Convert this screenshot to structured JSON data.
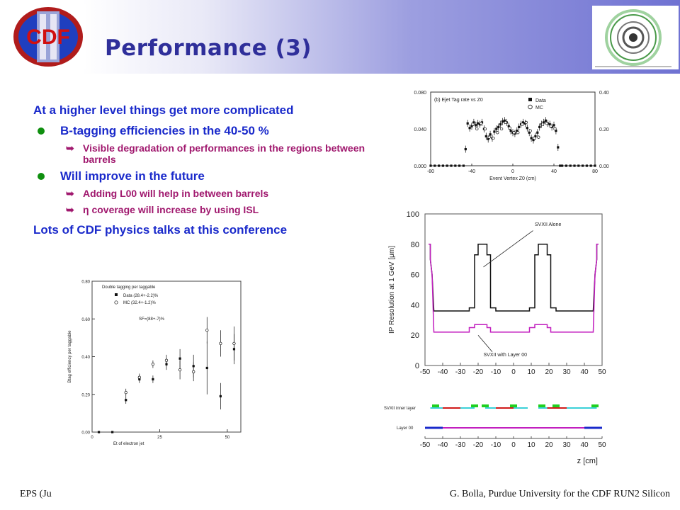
{
  "slide": {
    "title": "Performance (3)",
    "logo_text": "CDF II",
    "bullets": {
      "intro": "At a higher level things get more complicated",
      "b1": "B-tagging efficiencies in the 40-50 %",
      "b1_sub1": "Visible degradation of performances in the regions between barrels",
      "b2": "Will improve in the future",
      "b2_sub1": "Adding L00 will help in between barrels",
      "b2_sub2_symbol": "η",
      "b2_sub2": "coverage will increase by using ISL",
      "outro": "Lots of CDF physics talks at this conference"
    },
    "footer_left": "EPS (Ju",
    "footer_right": "G. Bolla, Purdue University for the CDF RUN2 Silicon",
    "colors": {
      "title": "#2f2f9a",
      "text": "#1a2acb",
      "sub": "#a0186e",
      "bullet": "#0f8f0f"
    }
  },
  "chart_data": [
    {
      "type": "scatter",
      "title": "(b) Ejet Tag rate vs Z0",
      "xlabel": "Event Vertex Z0 (cm)",
      "xticks": [
        "-80",
        "-40",
        "0",
        "40",
        "80"
      ],
      "yticks_left": [
        "0.000",
        "0.040",
        "0.080"
      ],
      "yticks_right": [
        "0.00",
        "0.20",
        "0.40"
      ],
      "xlim": [
        -80,
        80
      ],
      "ylim": [
        0,
        0.08
      ],
      "legend": [
        "Data",
        "MC"
      ],
      "series": [
        {
          "name": "Data",
          "x": [
            -80,
            -76,
            -72,
            -68,
            -64,
            -60,
            -56,
            -52,
            -48,
            -46,
            -44,
            -42,
            -40,
            -38,
            -36,
            -34,
            -32,
            -30,
            -28,
            -26,
            -24,
            -22,
            -20,
            -18,
            -16,
            -14,
            -12,
            -10,
            -8,
            -6,
            -4,
            -2,
            0,
            2,
            4,
            6,
            8,
            10,
            12,
            14,
            16,
            18,
            20,
            22,
            24,
            26,
            28,
            30,
            32,
            34,
            36,
            38,
            40,
            42,
            44,
            46,
            48,
            52,
            56,
            60,
            64,
            68,
            72,
            76,
            80
          ],
          "y": [
            0,
            0,
            0,
            0,
            0,
            0,
            0,
            0,
            0,
            0.018,
            0.046,
            0.041,
            0.043,
            0.047,
            0.044,
            0.046,
            0.045,
            0.047,
            0.04,
            0.032,
            0.029,
            0.034,
            0.03,
            0.037,
            0.04,
            0.042,
            0.045,
            0.048,
            0.049,
            0.047,
            0.043,
            0.038,
            0.036,
            0.035,
            0.038,
            0.042,
            0.045,
            0.047,
            0.046,
            0.041,
            0.036,
            0.03,
            0.028,
            0.032,
            0.036,
            0.042,
            0.045,
            0.047,
            0.049,
            0.046,
            0.045,
            0.042,
            0.044,
            0.038,
            0.02,
            0,
            0,
            0,
            0,
            0,
            0,
            0,
            0,
            0,
            0
          ]
        },
        {
          "name": "MC",
          "x": [
            -40,
            -36,
            -32,
            -28,
            -24,
            -20,
            -16,
            -12,
            -8,
            -4,
            0,
            4,
            8,
            12,
            16,
            20,
            24,
            28,
            32,
            36,
            40
          ],
          "y": [
            0.045,
            0.04,
            0.046,
            0.04,
            0.031,
            0.03,
            0.036,
            0.04,
            0.047,
            0.041,
            0.036,
            0.036,
            0.045,
            0.047,
            0.038,
            0.03,
            0.031,
            0.045,
            0.046,
            0.043,
            0.04
          ]
        }
      ]
    },
    {
      "type": "scatter",
      "title": "Double tagging per taggable",
      "xlabel": "Et of electron jet",
      "ylabel": "Btag efficiency per taggable",
      "xticks": [
        "0",
        "25",
        "50"
      ],
      "yticks": [
        "0.00",
        "0.20",
        "0.40",
        "0.60",
        "0.80"
      ],
      "xlim": [
        0,
        55
      ],
      "ylim": [
        0,
        0.8
      ],
      "legend": [
        "Data (28.4+-2.2)%",
        "MC (32.4+-1.2)%"
      ],
      "annotation": "SF=(88+-7)%",
      "series": [
        {
          "name": "Data",
          "x": [
            2.5,
            7.5,
            12.5,
            17.5,
            22.5,
            27.5,
            32.5,
            37.5,
            42.5,
            47.5,
            52.5
          ],
          "y": [
            0.0,
            0.0,
            0.17,
            0.28,
            0.28,
            0.36,
            0.39,
            0.35,
            0.34,
            0.19,
            0.44
          ],
          "err": [
            0,
            0,
            0.02,
            0.02,
            0.02,
            0.03,
            0.05,
            0.06,
            0.14,
            0.07,
            0.08
          ]
        },
        {
          "name": "MC",
          "x": [
            12.5,
            17.5,
            22.5,
            27.5,
            32.5,
            37.5,
            42.5,
            47.5,
            52.5
          ],
          "y": [
            0.21,
            0.29,
            0.36,
            0.38,
            0.33,
            0.32,
            0.54,
            0.47,
            0.47
          ],
          "err": [
            0.02,
            0.02,
            0.02,
            0.03,
            0.05,
            0.05,
            0.07,
            0.07,
            0.09
          ]
        }
      ]
    },
    {
      "type": "line",
      "ylabel": "IP Resolution at 1 GeV [μm]",
      "xlabel": "z [cm]",
      "xticks": [
        "-50",
        "-40",
        "-30",
        "-20",
        "-10",
        "0",
        "10",
        "20",
        "30",
        "40",
        "50"
      ],
      "yticks": [
        "0",
        "20",
        "40",
        "60",
        "80",
        "100"
      ],
      "xlim": [
        -50,
        50
      ],
      "ylim": [
        0,
        100
      ],
      "annotations": [
        "SVXII Alone",
        "SVXII with Layer 00"
      ],
      "series": [
        {
          "name": "SVXII Alone",
          "points": [
            [
              -48,
              80
            ],
            [
              -47,
              80
            ],
            [
              -47,
              70
            ],
            [
              -46,
              60
            ],
            [
              -45,
              36
            ],
            [
              -25,
              36
            ],
            [
              -25,
              38
            ],
            [
              -22,
              38
            ],
            [
              -22,
              73
            ],
            [
              -20,
              73
            ],
            [
              -20,
              80
            ],
            [
              -15,
              80
            ],
            [
              -15,
              73
            ],
            [
              -13,
              73
            ],
            [
              -13,
              38
            ],
            [
              -10,
              38
            ],
            [
              -10,
              36
            ],
            [
              9,
              36
            ],
            [
              9,
              38
            ],
            [
              12,
              38
            ],
            [
              12,
              73
            ],
            [
              14,
              73
            ],
            [
              14,
              80
            ],
            [
              19,
              80
            ],
            [
              19,
              73
            ],
            [
              21,
              73
            ],
            [
              21,
              38
            ],
            [
              24,
              38
            ],
            [
              24,
              36
            ],
            [
              45,
              36
            ],
            [
              46,
              60
            ],
            [
              47,
              70
            ],
            [
              47,
              80
            ],
            [
              48,
              80
            ]
          ]
        },
        {
          "name": "SVXII with Layer 00",
          "points": [
            [
              -48,
              80
            ],
            [
              -47,
              80
            ],
            [
              -47,
              70
            ],
            [
              -46,
              60
            ],
            [
              -45,
              22
            ],
            [
              -25,
              22
            ],
            [
              -25,
              25
            ],
            [
              -22,
              25
            ],
            [
              -22,
              27
            ],
            [
              -15,
              27
            ],
            [
              -15,
              25
            ],
            [
              -13,
              25
            ],
            [
              -13,
              22
            ],
            [
              9,
              22
            ],
            [
              9,
              25
            ],
            [
              12,
              25
            ],
            [
              12,
              27
            ],
            [
              19,
              27
            ],
            [
              19,
              25
            ],
            [
              21,
              25
            ],
            [
              21,
              22
            ],
            [
              45,
              22
            ],
            [
              46,
              60
            ],
            [
              47,
              70
            ],
            [
              47,
              80
            ],
            [
              48,
              80
            ]
          ]
        }
      ]
    }
  ],
  "layer_diagram": {
    "label1": "SVXII inner layer",
    "label2": "Layer 00",
    "xlabel": "z [cm]",
    "xticks": [
      "-50",
      "-40",
      "-30",
      "-20",
      "-10",
      "0",
      "10",
      "20",
      "30",
      "40",
      "50"
    ]
  }
}
